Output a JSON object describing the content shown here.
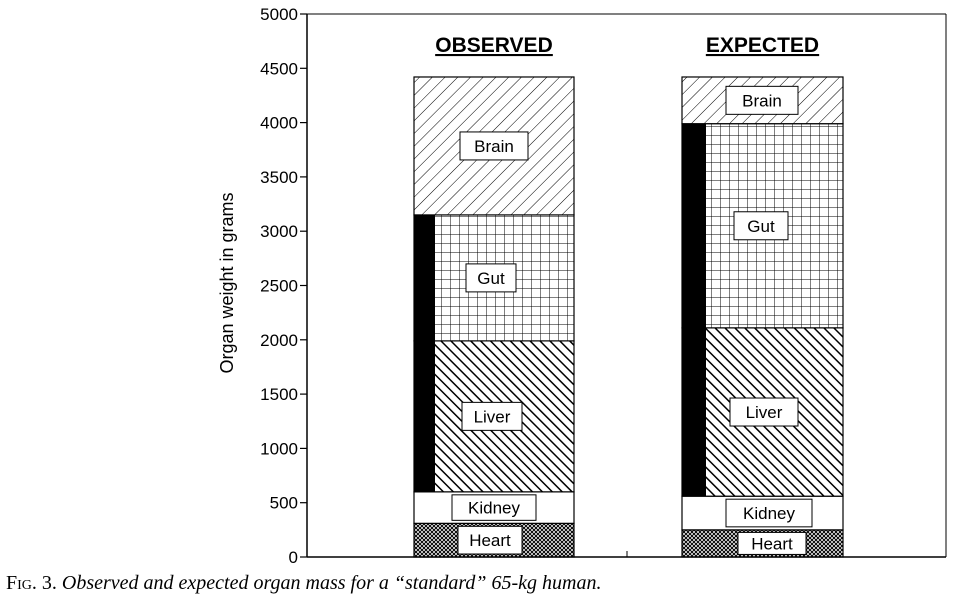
{
  "chart_data": {
    "type": "bar",
    "stacked": true,
    "ylabel": "Organ weight in grams",
    "ylim": [
      0,
      5000
    ],
    "yticks": [
      0,
      500,
      1000,
      1500,
      2000,
      2500,
      3000,
      3500,
      4000,
      4500,
      5000
    ],
    "grid": false,
    "bars": [
      {
        "name": "OBSERVED",
        "segments": [
          {
            "label": "Heart",
            "start": 0,
            "end": 310,
            "pattern": "crosshatch"
          },
          {
            "label": "Kidney",
            "start": 310,
            "end": 600,
            "pattern": "none"
          },
          {
            "label": "Liver",
            "start": 600,
            "end": 1990,
            "pattern": "diag-dense"
          },
          {
            "label": "Gut",
            "start": 1990,
            "end": 3150,
            "pattern": "grid"
          },
          {
            "label": "Brain",
            "start": 3150,
            "end": 4420,
            "pattern": "diag-sparse"
          }
        ],
        "black_bar": {
          "start": 600,
          "end": 3150
        }
      },
      {
        "name": "EXPECTED",
        "segments": [
          {
            "label": "Heart",
            "start": 0,
            "end": 250,
            "pattern": "crosshatch"
          },
          {
            "label": "Kidney",
            "start": 250,
            "end": 560,
            "pattern": "none"
          },
          {
            "label": "Liver",
            "start": 560,
            "end": 2110,
            "pattern": "diag-dense"
          },
          {
            "label": "Gut",
            "start": 2110,
            "end": 3990,
            "pattern": "grid"
          },
          {
            "label": "Brain",
            "start": 3990,
            "end": 4420,
            "pattern": "diag-sparse"
          }
        ],
        "black_bar": {
          "start": 560,
          "end": 3990
        }
      }
    ]
  },
  "caption": {
    "label": "Fig. 3.",
    "text": "Observed and expected organ mass for a “standard” 65-kg human."
  }
}
